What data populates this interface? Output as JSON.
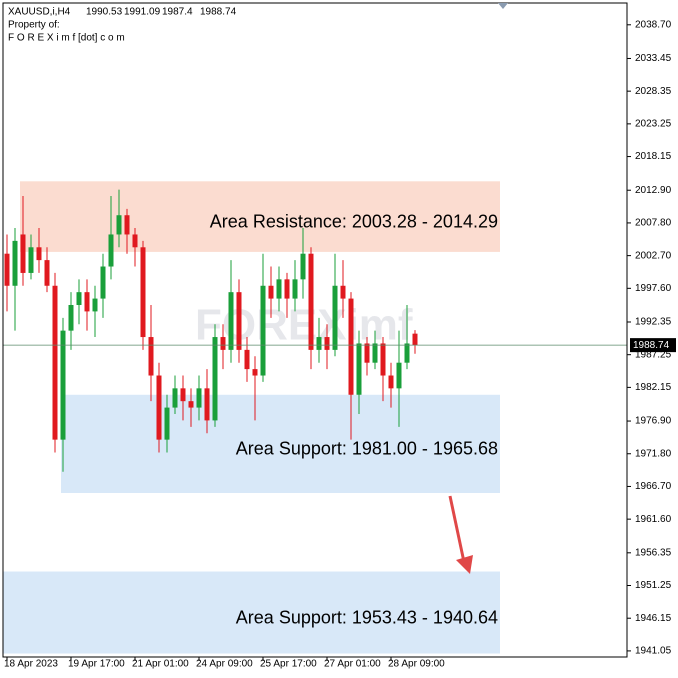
{
  "chart_data": {
    "type": "candlestick",
    "title": "XAUUSD,i,H4",
    "subtitle": "Property of:",
    "source": "F O R E X i m f [dot] c o m",
    "watermark": "FOREXimf",
    "up_color": "#1a9f3a",
    "down_color": "#e0191f",
    "categories": [
      "18 Apr 2023",
      null,
      null,
      null,
      null,
      null,
      null,
      null,
      "19 Apr 17:00",
      null,
      null,
      null,
      null,
      null,
      null,
      null,
      "21 Apr 01:00",
      null,
      null,
      null,
      null,
      null,
      null,
      null,
      "24 Apr 09:00",
      null,
      null,
      null,
      null,
      null,
      null,
      null,
      "25 Apr 17:00",
      null,
      null,
      null,
      null,
      null,
      null,
      null,
      "27 Apr 01:00",
      null,
      null,
      null,
      null,
      null,
      null,
      null,
      "28 Apr 09:00",
      null,
      null,
      null
    ],
    "open": [
      2003,
      1998,
      2006,
      2000,
      2004,
      2002,
      1998,
      1974,
      1991,
      1995,
      1997,
      1994,
      1996,
      2001,
      2006,
      2009,
      2006,
      2004,
      1990,
      1984,
      1974,
      1979,
      1982,
      1980,
      1979,
      1982,
      1977,
      1990,
      1988,
      1997,
      1988,
      1985,
      1984,
      1998,
      1996,
      1999,
      1996,
      1999,
      2003,
      1988,
      1990,
      1988,
      1998,
      1996,
      1981,
      1989,
      1986,
      1989,
      1984,
      1982,
      1986,
      1990.53
    ],
    "high": [
      2006,
      2007,
      2012,
      2006,
      2007,
      2004,
      2000,
      1993,
      1997,
      1999,
      1999,
      1998,
      2003,
      2012,
      2013,
      2010,
      2007,
      2005,
      1995,
      1986,
      1981,
      1984,
      1984,
      1982,
      1984,
      1985,
      1992,
      1992,
      2002,
      1999,
      1990,
      1987,
      2003,
      2001,
      2001,
      2000,
      2002,
      2007,
      2004,
      1993,
      1992,
      2003,
      2002,
      1997,
      1991,
      1990,
      1991,
      1990,
      1986,
      1991,
      1995,
      1991.09
    ],
    "low": [
      1994,
      1991,
      1998,
      1999,
      2000,
      1997,
      1972,
      1969,
      1988,
      1992,
      1991,
      1990,
      1993,
      1999,
      2004,
      2003,
      2001,
      1988,
      1980,
      1972,
      1972,
      1978,
      1977,
      1976,
      1977,
      1975,
      1976,
      1985,
      1986,
      1986,
      1983,
      1977,
      1983,
      1993,
      1994,
      1993,
      1994,
      1996,
      1985,
      1986,
      1985,
      1987,
      1993,
      1974,
      1978,
      1984,
      1985,
      1980,
      1979,
      1976,
      1985,
      1987.4
    ],
    "close": [
      1998,
      2005,
      2000,
      2004,
      2002,
      1998,
      1974,
      1991,
      1995,
      1997,
      1994,
      1996,
      2001,
      2006,
      2009,
      2006,
      2004,
      1990,
      1984,
      1974,
      1979,
      1982,
      1980,
      1979,
      1982,
      1977,
      1990,
      1988,
      1997,
      1988,
      1985,
      1984,
      1998,
      1996,
      1999,
      1996,
      1999,
      2003,
      1988,
      1990,
      1988,
      1998,
      1996,
      1981,
      1989,
      1986,
      1989,
      1984,
      1982,
      1986,
      1989,
      1988.74
    ],
    "ylim": [
      1940.1,
      2042.1
    ],
    "yticks": [
      {
        "value": 2038.7,
        "label": "2038.70"
      },
      2033.45,
      2028.35,
      2023.25,
      2018.15,
      {
        "value": 2012.9,
        "label": "2012.90"
      },
      {
        "value": 2007.8,
        "label": "2007.80"
      },
      {
        "value": 2002.7,
        "label": "2002.70"
      },
      {
        "value": 1997.6,
        "label": "1997.60"
      },
      1992.35,
      1987.25,
      1982.15,
      {
        "value": 1976.9,
        "label": "1976.90"
      },
      {
        "value": 1971.8,
        "label": "1971.80"
      },
      {
        "value": 1966.7,
        "label": "1966.70"
      },
      {
        "value": 1961.6,
        "label": "1961.60"
      },
      1956.35,
      1951.25,
      1946.15,
      1941.05
    ],
    "zones": [
      {
        "label": "Area Resistance: 2003.28 - 2014.29",
        "low": 2003.28,
        "high": 2014.29,
        "color": "#fbdcd0"
      },
      {
        "label": "Area Support: 1981.00 - 1965.68",
        "low": 1965.68,
        "high": 1981.0,
        "color": "#d8e8f8"
      },
      {
        "label": "Area Support: 1953.43 - 1940.64",
        "low": 1940.64,
        "high": 1953.43,
        "color": "#d8e8f8"
      }
    ]
  }
}
